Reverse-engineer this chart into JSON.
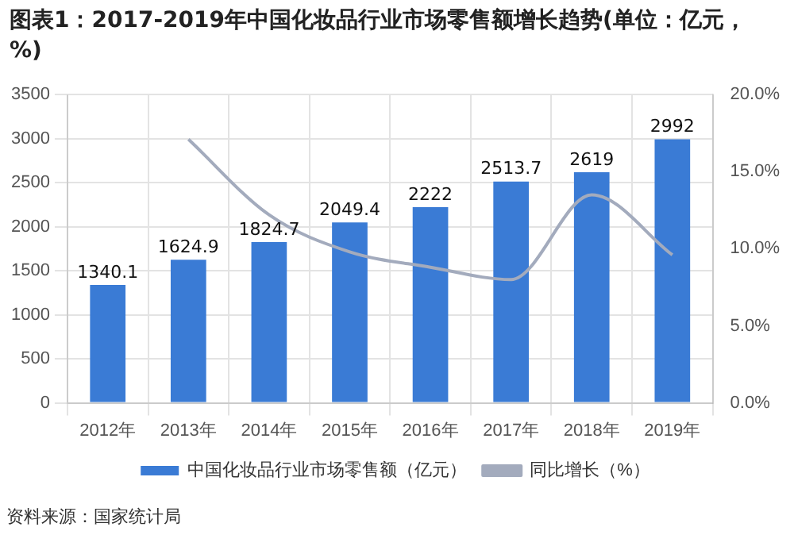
{
  "chart_data": {
    "type": "bar",
    "title": "图表1：2017-2019年中国化妆品行业市场零售额增长趋势(单位：亿元，%)",
    "categories": [
      "2012年",
      "2013年",
      "2014年",
      "2015年",
      "2016年",
      "2017年",
      "2018年",
      "2019年"
    ],
    "series": [
      {
        "name": "中国化妆品行业市场零售额（亿元）",
        "color": "#3a7bd5",
        "values": [
          1340.1,
          1624.9,
          1824.7,
          2049.4,
          2222,
          2513.7,
          2619,
          2992
        ],
        "data_labels": true
      },
      {
        "name": "同比增长（%）",
        "type": "line",
        "axis": "y2",
        "color": "#a3abbd",
        "values": [
          null,
          17.1,
          12.2,
          9.8,
          8.8,
          8.0,
          13.5,
          9.6
        ]
      }
    ],
    "ylim": [
      0,
      3500
    ],
    "yticks": [
      0,
      500,
      1000,
      1500,
      2000,
      2500,
      3000,
      3500
    ],
    "y2lim": [
      0,
      20
    ],
    "y2ticks": [
      {
        "value": 0,
        "label": "0.0%"
      },
      {
        "value": 5,
        "label": "5.0%"
      },
      {
        "value": 10,
        "label": "10.0%"
      },
      {
        "value": 15,
        "label": "15.0%"
      },
      {
        "value": 20,
        "label": "20.0%"
      }
    ],
    "grid": true,
    "legend": "bottom",
    "marker": "none",
    "line_style": "solid",
    "annotations": [
      "资料来源：国家统计局"
    ]
  }
}
